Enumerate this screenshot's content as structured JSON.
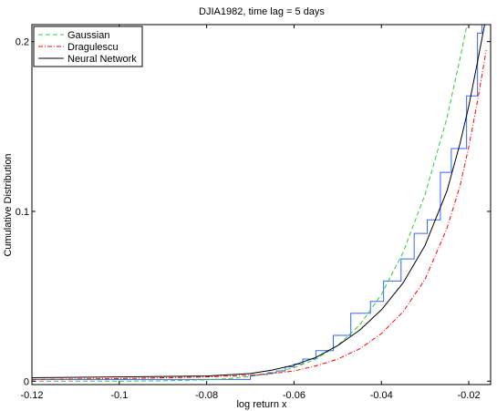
{
  "chart_data": {
    "type": "line",
    "title": "DJIA1982, time lag = 5 days",
    "xlabel": "log return x",
    "ylabel": "Cumulative Distribution",
    "xlim": [
      -0.12,
      -0.015
    ],
    "ylim": [
      -0.002,
      0.21
    ],
    "x_ticks": [
      -0.12,
      -0.1,
      -0.08,
      -0.06,
      -0.04,
      -0.02
    ],
    "x_tick_labels": [
      "-0.12",
      "-0.1",
      "-0.08",
      "-0.06",
      "-0.04",
      "-0.02"
    ],
    "y_ticks": [
      0,
      0.1,
      0.2
    ],
    "y_tick_labels": [
      "0",
      "0.1",
      "0.2"
    ],
    "grid": false,
    "legend_position": "top-left",
    "series": [
      {
        "name": "Gaussian",
        "color": "#33cc33",
        "dash": "dashed",
        "x": [
          -0.12,
          -0.1,
          -0.09,
          -0.08,
          -0.075,
          -0.07,
          -0.065,
          -0.06,
          -0.055,
          -0.05,
          -0.045,
          -0.04,
          -0.035,
          -0.03,
          -0.025,
          -0.022,
          -0.02
        ],
        "y": [
          0.0,
          0.0,
          0.0002,
          0.0008,
          0.0015,
          0.0028,
          0.0048,
          0.008,
          0.013,
          0.021,
          0.033,
          0.051,
          0.076,
          0.11,
          0.155,
          0.19,
          0.215
        ]
      },
      {
        "name": "Dragulescu",
        "color": "#ff0000",
        "dash": "dashdot",
        "x": [
          -0.12,
          -0.1,
          -0.09,
          -0.08,
          -0.07,
          -0.065,
          -0.06,
          -0.055,
          -0.05,
          -0.045,
          -0.04,
          -0.035,
          -0.03,
          -0.025,
          -0.022,
          -0.02,
          -0.018,
          -0.016
        ],
        "y": [
          0.001,
          0.0015,
          0.002,
          0.0025,
          0.0035,
          0.0045,
          0.006,
          0.009,
          0.013,
          0.019,
          0.028,
          0.041,
          0.06,
          0.09,
          0.115,
          0.138,
          0.165,
          0.195
        ]
      },
      {
        "name": "Neural Network",
        "color": "#000000",
        "dash": "solid",
        "x": [
          -0.12,
          -0.1,
          -0.08,
          -0.07,
          -0.065,
          -0.06,
          -0.055,
          -0.05,
          -0.045,
          -0.04,
          -0.035,
          -0.03,
          -0.025,
          -0.022,
          -0.02,
          -0.018,
          -0.016
        ],
        "y": [
          0.002,
          0.0025,
          0.003,
          0.0045,
          0.0065,
          0.0095,
          0.014,
          0.021,
          0.03,
          0.042,
          0.058,
          0.08,
          0.112,
          0.14,
          0.162,
          0.188,
          0.215
        ]
      }
    ],
    "empirical_steps": {
      "color": "#3366ff",
      "x": [
        -0.12,
        -0.075,
        -0.07,
        -0.068,
        -0.066,
        -0.064,
        -0.062,
        -0.06,
        -0.058,
        -0.055,
        -0.051,
        -0.047,
        -0.0425,
        -0.0395,
        -0.0355,
        -0.0325,
        -0.0295,
        -0.0265,
        -0.024,
        -0.0205,
        -0.018,
        -0.017
      ],
      "y": [
        0.001,
        0.001,
        0.0035,
        0.004,
        0.005,
        0.006,
        0.0085,
        0.01,
        0.013,
        0.018,
        0.027,
        0.04,
        0.047,
        0.059,
        0.072,
        0.087,
        0.095,
        0.123,
        0.137,
        0.168,
        0.205,
        0.21
      ]
    }
  }
}
